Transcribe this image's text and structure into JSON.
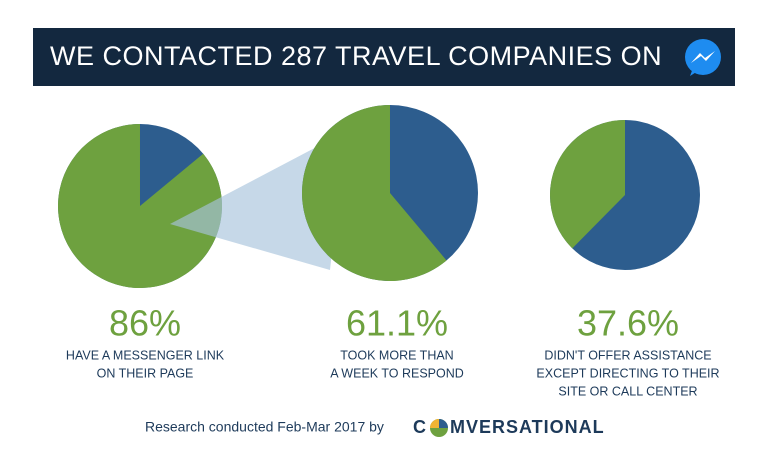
{
  "header": {
    "title": "WE CONTACTED 287 TRAVEL COMPANIES ON"
  },
  "chart_data": [
    {
      "type": "pie",
      "values": [
        86
      ],
      "value_labels": [
        "86%"
      ],
      "description": [
        "HAVE A MESSENGER LINK",
        "ON THEIR PAGE"
      ],
      "color": "#6ea13f",
      "remainder_color": "#2d5d8e"
    },
    {
      "type": "pie",
      "values": [
        61.1
      ],
      "value_labels": [
        "61.1%"
      ],
      "description": [
        "TOOK MORE THAN",
        "A WEEK TO RESPOND"
      ],
      "color": "#6ea13f",
      "remainder_color": "#2d5d8e"
    },
    {
      "type": "pie",
      "values": [
        37.6
      ],
      "value_labels": [
        "37.6%"
      ],
      "description": [
        "DIDN'T OFFER ASSISTANCE",
        "EXCEPT DIRECTING TO THEIR",
        "SITE OR CALL CENTER"
      ],
      "color": "#6ea13f",
      "remainder_color": "#2d5d8e"
    }
  ],
  "footer": {
    "text": "Research conducted Feb-Mar 2017 by",
    "brand_start": "C",
    "brand_end": "MVERSATIONAL"
  }
}
